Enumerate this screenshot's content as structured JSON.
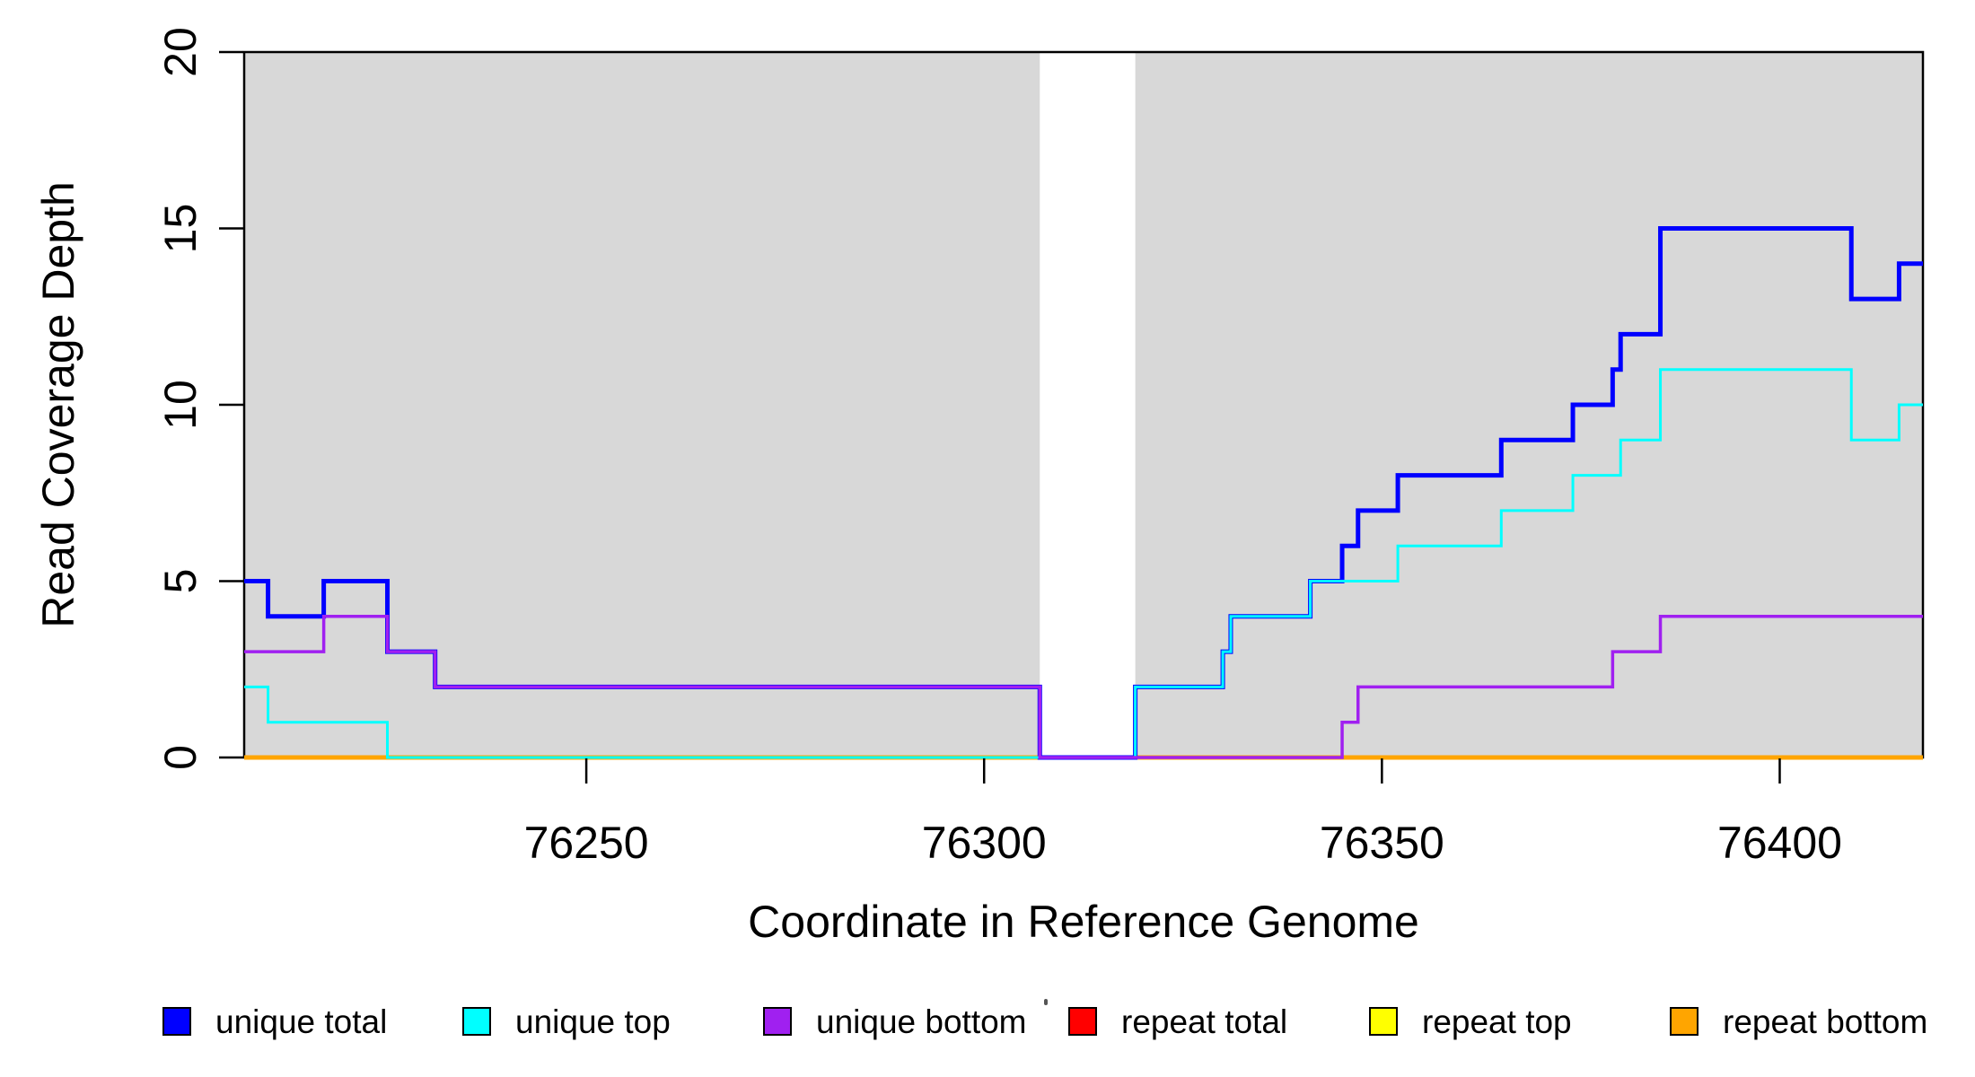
{
  "figure": {
    "xlabel": "Coordinate in Reference Genome",
    "ylabel": "Read Coverage Depth",
    "background": "#ffffff",
    "plot_border_color": "#000000"
  },
  "chart_data": {
    "type": "line",
    "subtype": "step-coverage",
    "title": "",
    "xlabel": "Coordinate in Reference Genome",
    "ylabel": "Read Coverage Depth",
    "xlim": [
      76207,
      76418
    ],
    "ylim": [
      0,
      20
    ],
    "x_ticks": [
      76250,
      76300,
      76350,
      76400
    ],
    "y_ticks": [
      0,
      5,
      10,
      15,
      20
    ],
    "grid": false,
    "legend_position": "bottom",
    "shaded_regions": [
      {
        "name": "unique-mappability-band-left",
        "x0": 76207,
        "x1": 76307,
        "color": "#D8D8D8"
      },
      {
        "name": "unique-mappability-band-right",
        "x0": 76319,
        "x1": 76418,
        "color": "#D8D8D8"
      }
    ],
    "gap_region": {
      "x0": 76307,
      "x1": 76319
    },
    "series": [
      {
        "name": "repeat total",
        "color": "#FF0000",
        "width": 5,
        "steps": [
          [
            76207,
            0
          ],
          [
            76418,
            0
          ]
        ]
      },
      {
        "name": "repeat top",
        "color": "#FFFF00",
        "width": 5,
        "steps": [
          [
            76207,
            0
          ],
          [
            76418,
            0
          ]
        ]
      },
      {
        "name": "repeat bottom",
        "color": "#FFA500",
        "width": 5,
        "steps": [
          [
            76207,
            0
          ],
          [
            76418,
            0
          ]
        ]
      },
      {
        "name": "unique total",
        "color": "#0000FF",
        "width": 5,
        "steps": [
          [
            76207,
            5
          ],
          [
            76210,
            4
          ],
          [
            76217,
            5
          ],
          [
            76225,
            3
          ],
          [
            76231,
            2
          ],
          [
            76307,
            0
          ],
          [
            76319,
            2
          ],
          [
            76330,
            3
          ],
          [
            76331,
            4
          ],
          [
            76341,
            5
          ],
          [
            76345,
            6
          ],
          [
            76347,
            7
          ],
          [
            76352,
            8
          ],
          [
            76365,
            9
          ],
          [
            76374,
            10
          ],
          [
            76379,
            11
          ],
          [
            76380,
            12
          ],
          [
            76385,
            15
          ],
          [
            76409,
            13
          ],
          [
            76415,
            14
          ],
          [
            76418,
            14
          ]
        ]
      },
      {
        "name": "unique top",
        "color": "#00FFFF",
        "width": 3,
        "steps": [
          [
            76207,
            2
          ],
          [
            76210,
            1
          ],
          [
            76225,
            0
          ],
          [
            76319,
            2
          ],
          [
            76330,
            3
          ],
          [
            76331,
            4
          ],
          [
            76341,
            5
          ],
          [
            76352,
            6
          ],
          [
            76365,
            7
          ],
          [
            76374,
            8
          ],
          [
            76380,
            9
          ],
          [
            76385,
            11
          ],
          [
            76409,
            9
          ],
          [
            76415,
            10
          ],
          [
            76418,
            10
          ]
        ]
      },
      {
        "name": "unique bottom",
        "color": "#A020F0",
        "width": 3.5,
        "steps": [
          [
            76207,
            3
          ],
          [
            76217,
            4
          ],
          [
            76225,
            3
          ],
          [
            76231,
            2
          ],
          [
            76307,
            0
          ],
          [
            76345,
            1
          ],
          [
            76347,
            2
          ],
          [
            76379,
            3
          ],
          [
            76385,
            4
          ],
          [
            76418,
            4
          ]
        ]
      }
    ]
  },
  "legend": {
    "items": [
      {
        "label": "unique total",
        "color": "#0000FF"
      },
      {
        "label": "unique top",
        "color": "#00FFFF"
      },
      {
        "label": "unique bottom",
        "color": "#A020F0"
      },
      {
        "label": "repeat total",
        "color": "#FF0000"
      },
      {
        "label": "repeat top",
        "color": "#FFFF00"
      },
      {
        "label": "repeat bottom",
        "color": "#FFA500"
      }
    ]
  }
}
